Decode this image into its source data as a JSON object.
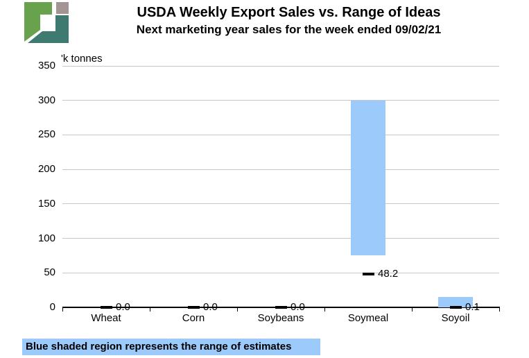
{
  "header": {
    "title": "USDA Weekly Export Sales vs. Range of Ideas",
    "subtitle": "Next marketing year sales for the week ended 09/02/21"
  },
  "logo": {
    "colors": {
      "green": "#69A24D",
      "gray": "#A49494",
      "teal": "#3F7A70"
    }
  },
  "chart_data": {
    "type": "bar",
    "subtype": "floating-range-bars-with-dash-markers",
    "title": "USDA Weekly Export Sales vs. Range of Ideas",
    "subtitle": "Next marketing year sales for the week ended 09/02/21",
    "unit_label": "'k tonnes",
    "categories": [
      "Wheat",
      "Corn",
      "Soybeans",
      "Soymeal",
      "Soyoil"
    ],
    "series": [
      {
        "type": "range",
        "low": [
          0,
          0,
          0,
          75,
          0
        ],
        "high": [
          0,
          0,
          0,
          300,
          15
        ]
      },
      {
        "type": "marker",
        "values": [
          0.0,
          0.0,
          0.0,
          48.2,
          0.1
        ],
        "labels": [
          "0.0",
          "0.0",
          "0.0",
          "48.2",
          "0.1"
        ]
      }
    ],
    "ylim": [
      0,
      350
    ],
    "ytick_interval": 50,
    "yticks": [
      0,
      50,
      100,
      150,
      200,
      250,
      300,
      350
    ],
    "grid": "horizontal",
    "legend": "none",
    "colors": {
      "range_fill": "#9CCAFB",
      "marker": "#000000",
      "gridline": "#C6C6C6",
      "axis": "#000000",
      "text": "#000000"
    }
  },
  "footnote": {
    "text": "Blue shaded region represents the range of estimates",
    "highlight_color": "#9CCAFB"
  }
}
